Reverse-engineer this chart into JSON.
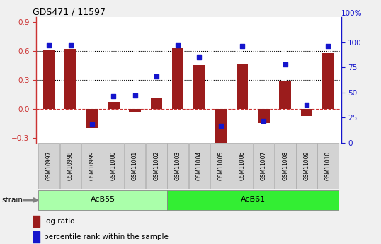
{
  "title": "GDS471 / 11597",
  "samples": [
    "GSM10997",
    "GSM10998",
    "GSM10999",
    "GSM11000",
    "GSM11001",
    "GSM11002",
    "GSM11003",
    "GSM11004",
    "GSM11005",
    "GSM11006",
    "GSM11007",
    "GSM11008",
    "GSM11009",
    "GSM11010"
  ],
  "log_ratio": [
    0.61,
    0.62,
    -0.2,
    0.07,
    -0.03,
    0.12,
    0.63,
    0.45,
    -0.38,
    0.46,
    -0.15,
    0.29,
    -0.07,
    0.58
  ],
  "percentile_rank": [
    97,
    97,
    18,
    46,
    47,
    66,
    97,
    85,
    17,
    96,
    22,
    78,
    38,
    96
  ],
  "groups": [
    {
      "label": "AcB55",
      "start": 0,
      "end": 6,
      "color": "#aaffaa"
    },
    {
      "label": "AcB61",
      "start": 6,
      "end": 14,
      "color": "#33ee33"
    }
  ],
  "strain_label": "strain",
  "ylim_left": [
    -0.35,
    0.95
  ],
  "ylim_right": [
    0,
    125
  ],
  "yticks_left": [
    -0.3,
    0.0,
    0.3,
    0.6,
    0.9
  ],
  "yticks_right": [
    0,
    25,
    50,
    75,
    100
  ],
  "hlines": [
    0.3,
    0.6
  ],
  "bar_color": "#9B1C1C",
  "dot_color": "#1515cc",
  "zero_line_color": "#cc3333",
  "background_color": "#f0f0f0",
  "plot_bg_color": "#ffffff",
  "label_bg_color": "#d3d3d3",
  "legend_items": [
    "log ratio",
    "percentile rank within the sample"
  ],
  "right_axis_label": "100%"
}
